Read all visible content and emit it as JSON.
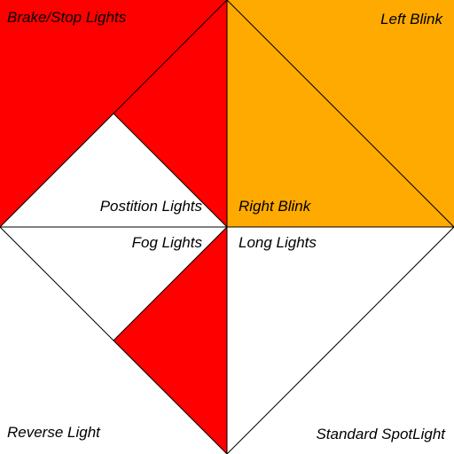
{
  "labels": {
    "brake": "Brake/Stop Lights",
    "left_blink": "Left Blink",
    "position": "Postition Lights",
    "right_blink": "Right Blink",
    "fog": "Fog Lights",
    "long": "Long Lights",
    "reverse": "Reverse Light",
    "spotlight": "Standard SpotLight"
  },
  "colors": {
    "red": "#ff0000",
    "amber": "#ffaa00",
    "white": "#ffffff",
    "stroke": "#000000"
  }
}
